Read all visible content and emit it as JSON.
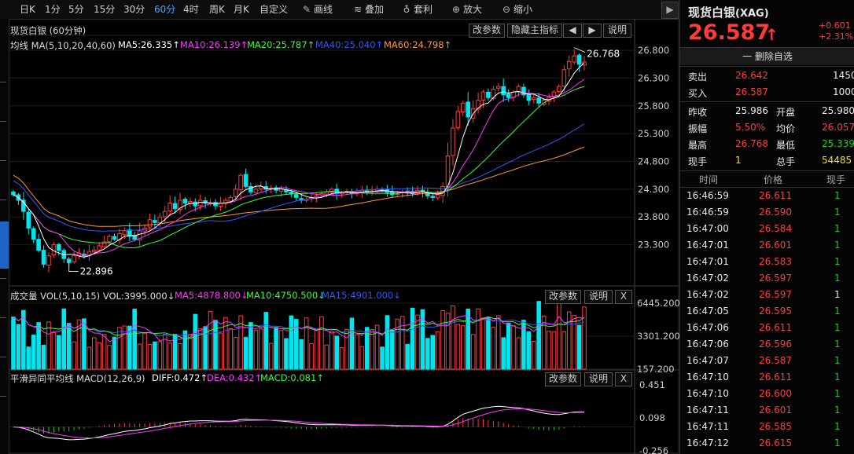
{
  "toolbar": {
    "periods": [
      "日K",
      "1分",
      "5分",
      "15分",
      "30分",
      "60分",
      "4时",
      "周K",
      "月K",
      "自定义"
    ],
    "active_period": "60分",
    "tools": [
      {
        "label": "画线",
        "icon": "pen-icon"
      },
      {
        "label": "叠加",
        "icon": "stack-icon"
      },
      {
        "label": "套利",
        "icon": "bag-icon"
      },
      {
        "label": "放大",
        "icon": "zoom-in-icon"
      },
      {
        "label": "缩小",
        "icon": "zoom-out-icon"
      }
    ],
    "next_icon": "chevron-right-icon"
  },
  "main_panel": {
    "title": "现货白银 (60分钟)",
    "buttons": {
      "params": "改参数",
      "hide": "隐藏主指标",
      "left": "◀",
      "right": "▶",
      "help": "说明"
    },
    "ma_header": "均线",
    "ma_params": "MA(5,10,20,40,60)",
    "ma": [
      {
        "label": "MA5:26.335↑",
        "color": "#ffffff"
      },
      {
        "label": "MA10:26.139↑",
        "color": "#ff33ff"
      },
      {
        "label": "MA20:25.787↑",
        "color": "#33ff33"
      },
      {
        "label": "MA40:25.040↑",
        "color": "#3355ff"
      },
      {
        "label": "MA60:24.798↑",
        "color": "#ff9933"
      }
    ],
    "y_ticks": [
      "26.800",
      "26.300",
      "25.800",
      "25.300",
      "24.800",
      "24.300",
      "23.800",
      "23.300"
    ],
    "high_label": "26.768",
    "low_label": "22.896"
  },
  "volume_panel": {
    "title": "成交量",
    "params": "VOL(5,10,15)",
    "vol": "VOL:3995.000↓",
    "ma": [
      {
        "label": "MA5:4878.800↓",
        "color": "#ff33ff"
      },
      {
        "label": "MA10:4750.500↓",
        "color": "#33ff33"
      },
      {
        "label": "MA15:4901.000↓",
        "color": "#3355ff"
      }
    ],
    "buttons": {
      "params": "改参数",
      "help": "说明",
      "close": "X"
    },
    "y_ticks": [
      "6445.200",
      "3301.200",
      "157.200"
    ]
  },
  "macd_panel": {
    "title": "平滑异同平均线",
    "params": "MACD(12,26,9)",
    "diff": {
      "label": "DIFF:0.472↑",
      "color": "#ffffff"
    },
    "dea": {
      "label": "DEA:0.432↑",
      "color": "#ff33ff"
    },
    "macd": {
      "label": "MACD:0.081↑",
      "color": "#33ff33"
    },
    "buttons": {
      "params": "改参数",
      "help": "说明",
      "close": "X"
    },
    "y_ticks": [
      "0.451",
      "0.098",
      "-0.256"
    ]
  },
  "colors": {
    "up": "#ff3b3b",
    "down": "#00e5ee",
    "ma5": "#ffffff",
    "ma10": "#ff33ff",
    "ma20": "#33ff33",
    "ma40": "#3355ff",
    "ma60": "#ff9933"
  },
  "quote": {
    "name": "现货白银",
    "code": "(XAG)",
    "price": "26.587",
    "arrow": "↑",
    "change": "+0.601",
    "change_pct": "+2.31%",
    "delete_btn": "一 删除自选",
    "ask_label": "卖出",
    "ask": "26.642",
    "ask_vol": "1450",
    "bid_label": "买入",
    "bid": "26.587",
    "bid_vol": "1000",
    "stats": [
      {
        "l1": "昨收",
        "v1": "25.986",
        "c1": "white",
        "l2": "开盘",
        "v2": "25.980",
        "c2": "white"
      },
      {
        "l1": "振幅",
        "v1": "5.50%",
        "c1": "red",
        "l2": "均价",
        "v2": "26.057",
        "c2": "red"
      },
      {
        "l1": "最高",
        "v1": "26.768",
        "c1": "red",
        "l2": "最低",
        "v2": "25.339",
        "c2": "green"
      },
      {
        "l1": "现手",
        "v1": "1",
        "c1": "yellow",
        "l2": "总手",
        "v2": "54485",
        "c2": "yellow"
      }
    ],
    "ticks_header": [
      "时间",
      "价格",
      "现手"
    ],
    "ticks": [
      {
        "time": "16:46:59",
        "price": "26.611",
        "vol": "1",
        "c": "green"
      },
      {
        "time": "16:46:59",
        "price": "26.590",
        "vol": "1",
        "c": "green"
      },
      {
        "time": "16:47:00",
        "price": "26.584",
        "vol": "1",
        "c": "green"
      },
      {
        "time": "16:47:01",
        "price": "26.601",
        "vol": "1",
        "c": "green"
      },
      {
        "time": "16:47:01",
        "price": "26.583",
        "vol": "1",
        "c": "green"
      },
      {
        "time": "16:47:02",
        "price": "26.597",
        "vol": "1",
        "c": "green"
      },
      {
        "time": "16:47:02",
        "price": "26.597",
        "vol": "1",
        "c": "white"
      },
      {
        "time": "16:47:05",
        "price": "26.595",
        "vol": "1",
        "c": "green"
      },
      {
        "time": "16:47:06",
        "price": "26.611",
        "vol": "1",
        "c": "green"
      },
      {
        "time": "16:47:06",
        "price": "26.596",
        "vol": "1",
        "c": "green"
      },
      {
        "time": "16:47:07",
        "price": "26.587",
        "vol": "1",
        "c": "green"
      },
      {
        "time": "16:47:10",
        "price": "26.611",
        "vol": "1",
        "c": "green"
      },
      {
        "time": "16:47:10",
        "price": "26.600",
        "vol": "1",
        "c": "green"
      },
      {
        "time": "16:47:11",
        "price": "26.601",
        "vol": "1",
        "c": "green"
      },
      {
        "time": "16:47:11",
        "price": "26.585",
        "vol": "1",
        "c": "green"
      },
      {
        "time": "16:47:12",
        "price": "26.615",
        "vol": "1",
        "c": "green"
      }
    ]
  },
  "chart_data": {
    "type": "candlestick",
    "interval": "60min",
    "price_range": [
      22.7,
      26.9
    ],
    "candles_close": [
      24.2,
      24.1,
      23.9,
      23.6,
      23.4,
      23.2,
      22.95,
      23.1,
      23.3,
      23.2,
      23.05,
      22.98,
      23.1,
      23.15,
      23.1,
      23.18,
      23.2,
      23.28,
      23.35,
      23.45,
      23.4,
      23.5,
      23.55,
      23.45,
      23.4,
      23.55,
      23.6,
      23.75,
      23.7,
      23.8,
      23.9,
      24.05,
      23.95,
      24.1,
      24.05,
      24.08,
      24.0,
      24.1,
      24.05,
      24.05,
      24.0,
      24.05,
      24.1,
      24.15,
      24.3,
      24.55,
      24.35,
      24.25,
      24.3,
      24.35,
      24.3,
      24.32,
      24.28,
      24.3,
      24.25,
      24.22,
      24.15,
      24.1,
      24.12,
      24.15,
      24.18,
      24.22,
      24.25,
      24.3,
      24.22,
      24.24,
      24.26,
      24.22,
      24.25,
      24.28,
      24.25,
      24.27,
      24.3,
      24.28,
      24.24,
      24.2,
      24.22,
      24.25,
      24.25,
      24.22,
      24.28,
      24.25,
      24.18,
      24.15,
      24.2,
      24.35,
      24.9,
      25.4,
      25.7,
      25.85,
      25.6,
      25.75,
      25.9,
      26.05,
      25.95,
      26.1,
      26.15,
      26.0,
      25.95,
      26.05,
      26.15,
      26.0,
      25.9,
      25.95,
      25.85,
      25.9,
      25.95,
      26.05,
      26.15,
      26.45,
      26.6,
      26.7,
      26.55,
      26.59
    ],
    "volume_range": [
      157.2,
      6445.2
    ],
    "macd_range": [
      -0.256,
      0.451
    ],
    "ma_last": {
      "MA5": 26.335,
      "MA10": 26.139,
      "MA20": 25.787,
      "MA40": 25.04,
      "MA60": 24.798
    }
  }
}
